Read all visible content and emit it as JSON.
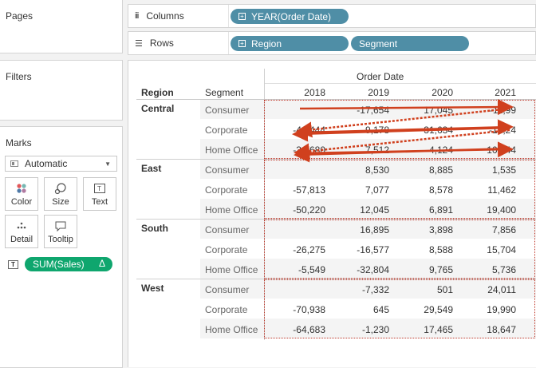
{
  "pages": {
    "title": "Pages"
  },
  "filters": {
    "title": "Filters"
  },
  "marks": {
    "title": "Marks",
    "mark_type": "Automatic",
    "buttons": {
      "color": "Color",
      "size": "Size",
      "text": "Text",
      "detail": "Detail",
      "tooltip": "Tooltip"
    },
    "text_indicator": "T",
    "measure_pill": "SUM(Sales)",
    "delta_symbol": "Δ"
  },
  "columns": {
    "label": "Columns",
    "pills": [
      "YEAR(Order Date)"
    ]
  },
  "rows": {
    "label": "Rows",
    "pills": [
      "Region",
      "Segment"
    ]
  },
  "crosstab": {
    "column_group_title": "Order Date",
    "row_headers": [
      "Region",
      "Segment"
    ],
    "years": [
      "2018",
      "2019",
      "2020",
      "2021"
    ],
    "regions": [
      {
        "name": "Central",
        "rows": [
          {
            "segment": "Consumer",
            "values": [
              "",
              "-17,654",
              "17,045",
              "-11,99"
            ]
          },
          {
            "segment": "Corporate",
            "values": [
              "-48,444",
              "9,178",
              "31,634",
              "-12,24"
            ]
          },
          {
            "segment": "Home Office",
            "values": [
              "-31,680",
              "7,512",
              "-4,124",
              "10,144"
            ]
          }
        ]
      },
      {
        "name": "East",
        "rows": [
          {
            "segment": "Consumer",
            "values": [
              "",
              "8,530",
              "8,885",
              "1,535"
            ]
          },
          {
            "segment": "Corporate",
            "values": [
              "-57,813",
              "7,077",
              "8,578",
              "11,462"
            ]
          },
          {
            "segment": "Home Office",
            "values": [
              "-50,220",
              "12,045",
              "6,891",
              "19,400"
            ]
          }
        ]
      },
      {
        "name": "South",
        "rows": [
          {
            "segment": "Consumer",
            "values": [
              "",
              "16,895",
              "3,898",
              "7,856"
            ]
          },
          {
            "segment": "Corporate",
            "values": [
              "-26,275",
              "-16,577",
              "8,588",
              "15,704"
            ]
          },
          {
            "segment": "Home Office",
            "values": [
              "-5,549",
              "-32,804",
              "9,765",
              "5,736"
            ]
          }
        ]
      },
      {
        "name": "West",
        "rows": [
          {
            "segment": "Consumer",
            "values": [
              "",
              "-7,332",
              "501",
              "24,011"
            ]
          },
          {
            "segment": "Corporate",
            "values": [
              "-70,938",
              "645",
              "29,549",
              "19,990"
            ]
          },
          {
            "segment": "Home Office",
            "values": [
              "-64,683",
              "-1,230",
              "17,465",
              "18,647"
            ]
          }
        ]
      }
    ]
  },
  "annotation_color": "#d0401e"
}
